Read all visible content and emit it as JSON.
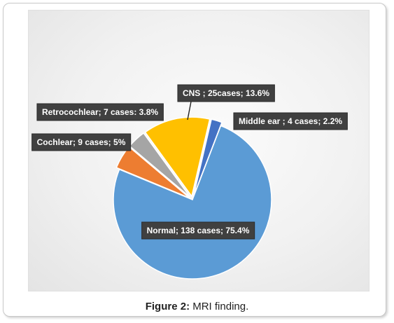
{
  "figure": {
    "caption_label": "Figure 2:",
    "caption_text": " MRI finding."
  },
  "chart_data": {
    "type": "pie",
    "title": "",
    "slices": [
      {
        "name": "Normal",
        "value": 138,
        "percent": 75.4,
        "color": "#5b9bd5",
        "label": "Normal; 138 cases; 75.4%"
      },
      {
        "name": "Cochlear",
        "value": 9,
        "percent": 5,
        "color": "#ed7d31",
        "label": "Cochlear; 9 cases; 5%"
      },
      {
        "name": "Retrocochlear",
        "value": 7,
        "percent": 3.8,
        "color": "#a5a5a5",
        "label": "Retrocochlear; 7 cases: 3.8%"
      },
      {
        "name": "CNS",
        "value": 25,
        "percent": 13.6,
        "color": "#ffc000",
        "label": "CNS ; 25cases; 13.6%"
      },
      {
        "name": "Middle ear",
        "value": 4,
        "percent": 2.2,
        "color": "#4472c4",
        "label": "Middle ear ; 4 cases; 2.2%"
      }
    ],
    "label_style": {
      "background": "#404040",
      "text_color": "#ffffff"
    },
    "legend": "none"
  }
}
